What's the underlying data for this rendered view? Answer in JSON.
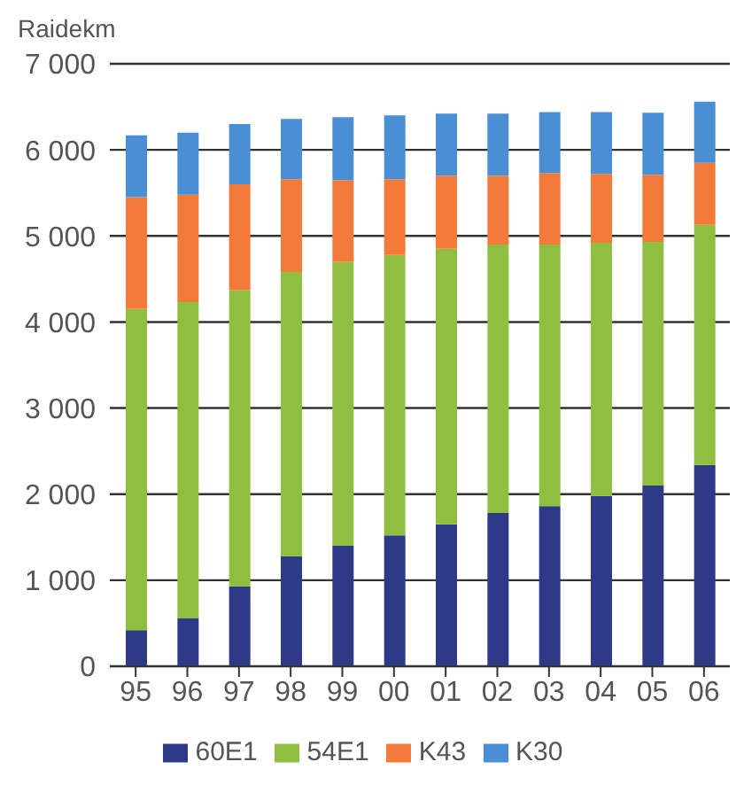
{
  "chart_data": {
    "type": "bar",
    "stacked": true,
    "ylabel": "Raidekm",
    "categories": [
      "95",
      "96",
      "97",
      "98",
      "99",
      "00",
      "01",
      "02",
      "03",
      "04",
      "05",
      "06"
    ],
    "series": [
      {
        "name": "60E1",
        "color": "#2e3a87",
        "values": [
          420,
          560,
          930,
          1280,
          1400,
          1520,
          1650,
          1780,
          1860,
          1980,
          2100,
          2340
        ]
      },
      {
        "name": "54E1",
        "color": "#8fbf3f",
        "values": [
          3730,
          3670,
          3440,
          3300,
          3300,
          3260,
          3200,
          3120,
          3040,
          2940,
          2830,
          2790
        ]
      },
      {
        "name": "K43",
        "color": "#f47a3a",
        "values": [
          1300,
          1250,
          1230,
          1080,
          950,
          880,
          850,
          800,
          830,
          800,
          780,
          720
        ]
      },
      {
        "name": "K30",
        "color": "#4a8fd4",
        "values": [
          720,
          720,
          700,
          700,
          730,
          740,
          720,
          720,
          710,
          720,
          720,
          710
        ]
      }
    ],
    "ylim": [
      0,
      7000
    ],
    "yticks": [
      {
        "value": 0,
        "label": "0"
      },
      {
        "value": 1000,
        "label": "1 000"
      },
      {
        "value": 2000,
        "label": "2 000"
      },
      {
        "value": 3000,
        "label": "3 000"
      },
      {
        "value": 4000,
        "label": "4 000"
      },
      {
        "value": 5000,
        "label": "5 000"
      },
      {
        "value": 6000,
        "label": "6 000"
      },
      {
        "value": 7000,
        "label": "7 000"
      }
    ],
    "grid": "y",
    "legend": "bottom"
  }
}
